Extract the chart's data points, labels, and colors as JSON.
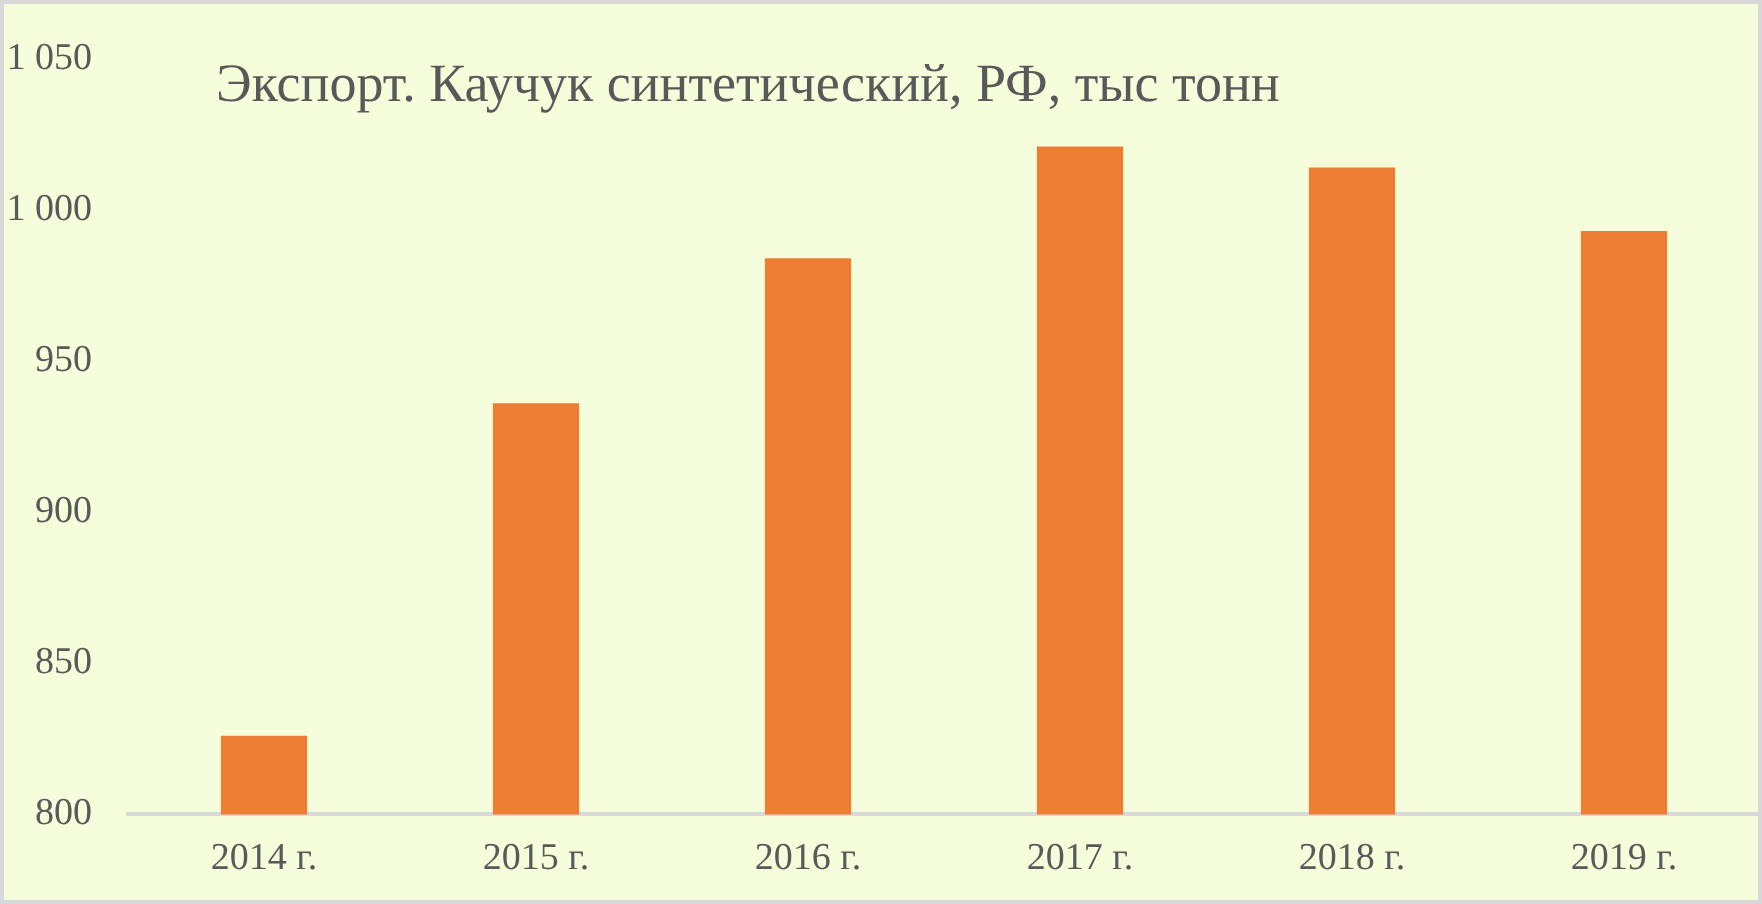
{
  "chart_data": {
    "type": "bar",
    "title": "Экспорт. Каучук синтетический, РФ, тыс тонн",
    "categories": [
      "2014 г.",
      "2015 г.",
      "2016 г.",
      "2017 г.",
      "2018 г.",
      "2019 г."
    ],
    "values": [
      826,
      936,
      984,
      1021,
      1014,
      993
    ],
    "color": "#ed7d31",
    "ylim": [
      800,
      1050
    ],
    "yticks": [
      800,
      850,
      900,
      950,
      {
        "value": 1000,
        "label": "1 000"
      },
      {
        "value": 1050,
        "label": "1 050"
      }
    ],
    "grid": false
  }
}
